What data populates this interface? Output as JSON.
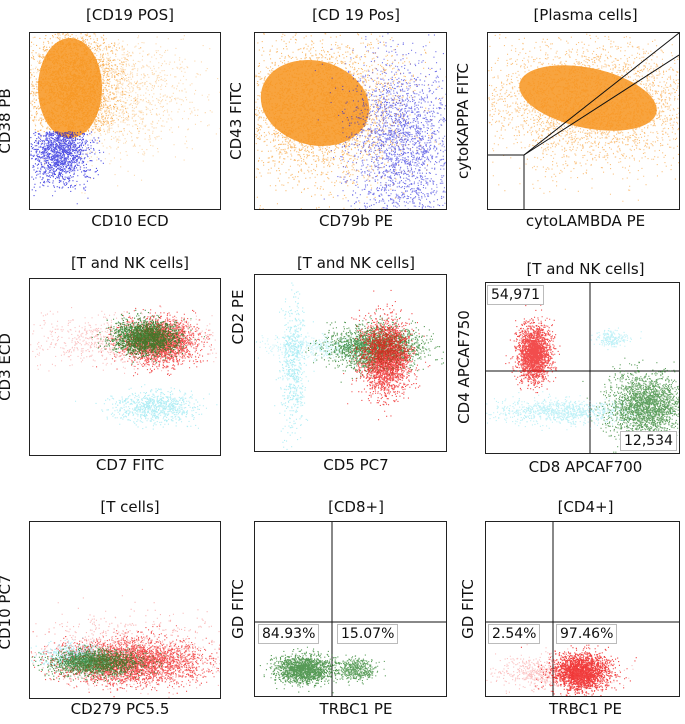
{
  "panels": [
    {
      "title": "[CD19 POS]",
      "xlabel": "CD10 ECD",
      "ylabel": "CD38 PB"
    },
    {
      "title": "[CD 19 Pos]",
      "xlabel": "CD79b PE",
      "ylabel": "CD43 FITC"
    },
    {
      "title": "[Plasma cells]",
      "xlabel": "cytoLAMBDA PE",
      "ylabel": "cytoKAPPA FITC"
    },
    {
      "title": "[T and NK cells]",
      "xlabel": "CD7 FITC",
      "ylabel": "CD3 ECD"
    },
    {
      "title": "[T and NK cells]",
      "xlabel": "CD5 PC7",
      "ylabel": "CD2 PE"
    },
    {
      "title": "[T and NK cells]",
      "xlabel": "CD8 APCAF700",
      "ylabel": "CD4 APCAF750",
      "quadrants": {
        "upper_left": "54,971",
        "lower_right": "12,534"
      }
    },
    {
      "title": "[T cells]",
      "xlabel": "CD279 PC5.5",
      "ylabel": "CD10 PC7"
    },
    {
      "title": "[CD8+]",
      "xlabel": "TRBC1 PE",
      "ylabel": "GD FITC",
      "quadrants": {
        "lower_left": "84.93%",
        "lower_right": "15.07%"
      }
    },
    {
      "title": "[CD4+]",
      "xlabel": "TRBC1 PE",
      "ylabel": "GD FITC",
      "quadrants": {
        "lower_left": "2.54%",
        "lower_right": "97.46%"
      }
    }
  ],
  "colors": {
    "orange": "#f7941d",
    "blue": "#1a1adb",
    "red": "#ee1111",
    "green": "#1f7a1f",
    "cyan": "#7fe3ef"
  },
  "chart_data": [
    {
      "type": "scatter",
      "title": "[CD19 POS]",
      "xlabel": "CD10 ECD",
      "ylabel": "CD38 PB",
      "populations": [
        {
          "color": "orange"
        },
        {
          "color": "blue"
        }
      ]
    },
    {
      "type": "scatter",
      "title": "[CD 19 Pos]",
      "xlabel": "CD79b PE",
      "ylabel": "CD43 FITC",
      "populations": [
        {
          "color": "orange"
        },
        {
          "color": "blue"
        }
      ]
    },
    {
      "type": "scatter",
      "title": "[Plasma cells]",
      "xlabel": "cytoLAMBDA PE",
      "ylabel": "cytoKAPPA FITC",
      "populations": [
        {
          "color": "orange"
        }
      ]
    },
    {
      "type": "scatter",
      "title": "[T and NK cells]",
      "xlabel": "CD7 FITC",
      "ylabel": "CD3 ECD",
      "populations": [
        {
          "color": "red"
        },
        {
          "color": "green"
        },
        {
          "color": "cyan"
        }
      ]
    },
    {
      "type": "scatter",
      "title": "[T and NK cells]",
      "xlabel": "CD5 PC7",
      "ylabel": "CD2 PE",
      "populations": [
        {
          "color": "red"
        },
        {
          "color": "green"
        },
        {
          "color": "cyan"
        }
      ]
    },
    {
      "type": "scatter",
      "title": "[T and NK cells]",
      "xlabel": "CD8 APCAF700",
      "ylabel": "CD4 APCAF750",
      "populations": [
        {
          "color": "red"
        },
        {
          "color": "green"
        },
        {
          "color": "cyan"
        }
      ],
      "quadrant_counts": {
        "upper_left": 54971,
        "lower_right": 12534
      }
    },
    {
      "type": "scatter",
      "title": "[T cells]",
      "xlabel": "CD279 PC5.5",
      "ylabel": "CD10 PC7",
      "populations": [
        {
          "color": "red"
        },
        {
          "color": "green"
        },
        {
          "color": "cyan"
        }
      ]
    },
    {
      "type": "scatter",
      "title": "[CD8+]",
      "xlabel": "TRBC1 PE",
      "ylabel": "GD FITC",
      "populations": [
        {
          "color": "green"
        }
      ],
      "quadrant_percent": {
        "lower_left": 84.93,
        "lower_right": 15.07
      }
    },
    {
      "type": "scatter",
      "title": "[CD4+]",
      "xlabel": "TRBC1 PE",
      "ylabel": "GD FITC",
      "populations": [
        {
          "color": "red"
        }
      ],
      "quadrant_percent": {
        "lower_left": 2.54,
        "lower_right": 97.46
      }
    }
  ]
}
